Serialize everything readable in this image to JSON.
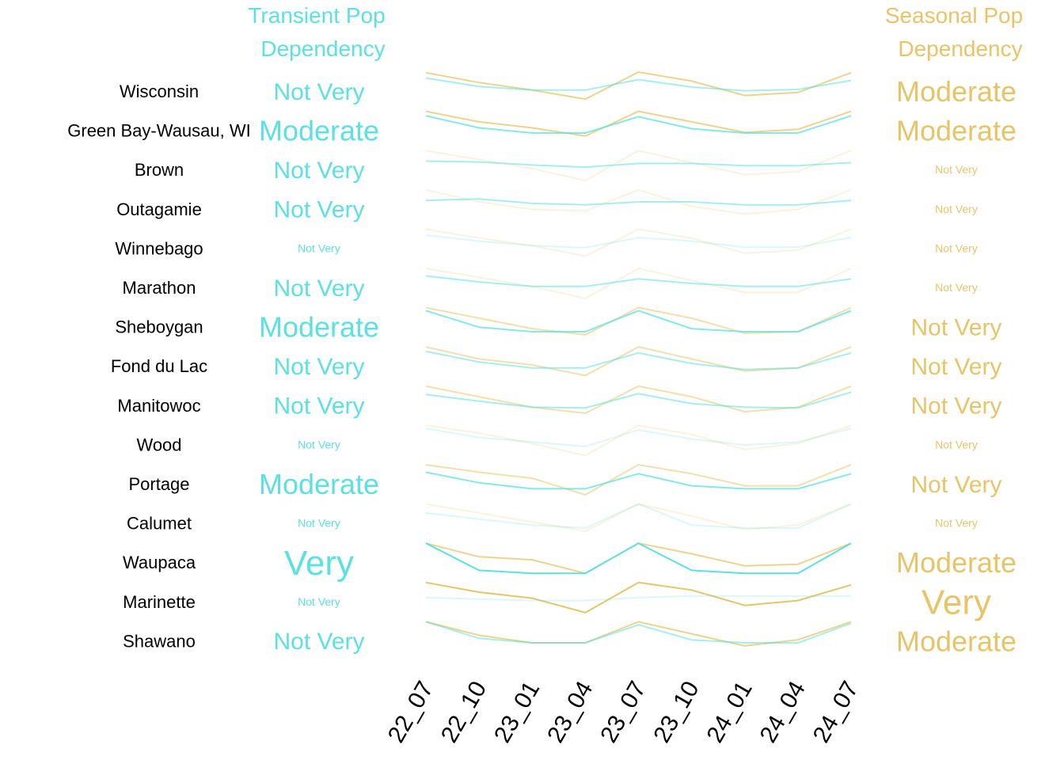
{
  "chart_data": {
    "type": "line",
    "headers": {
      "transient": [
        "Transient Pop",
        "Dependency"
      ],
      "seasonal": [
        "Seasonal Pop",
        "Dependency"
      ]
    },
    "x": [
      "22_07",
      "22_10",
      "23_01",
      "23_04",
      "23_07",
      "23_10",
      "24_01",
      "24_04",
      "24_07"
    ],
    "colors": {
      "transient": "#5ce0e0",
      "seasonal": "#e6c468",
      "label": "#000000"
    },
    "rows": [
      {
        "name": "Wisconsin",
        "transient_level": "Not Very",
        "seasonal_level": "Moderate",
        "transient": [
          0.2,
          0.48,
          0.6,
          0.6,
          0.25,
          0.5,
          0.62,
          0.58,
          0.28
        ],
        "seasonal": [
          0.02,
          0.35,
          0.6,
          0.9,
          0.0,
          0.3,
          0.78,
          0.68,
          0.02
        ]
      },
      {
        "name": "Green Bay-Wausau, WI",
        "transient_level": "Moderate",
        "seasonal_level": "Moderate",
        "transient": [
          0.15,
          0.55,
          0.72,
          0.72,
          0.18,
          0.58,
          0.72,
          0.72,
          0.15
        ],
        "seasonal": [
          0.0,
          0.35,
          0.55,
          0.82,
          0.0,
          0.35,
          0.7,
          0.6,
          0.0
        ]
      },
      {
        "name": "Brown",
        "transient_level": "Not Very",
        "seasonal_level": "Not Very",
        "transient": [
          0.35,
          0.38,
          0.48,
          0.55,
          0.43,
          0.43,
          0.5,
          0.5,
          0.4
        ],
        "seasonal": [
          0.0,
          0.3,
          0.6,
          1.0,
          0.0,
          0.4,
          0.8,
          0.7,
          0.0
        ]
      },
      {
        "name": "Outagamie",
        "transient_level": "Not Very",
        "seasonal_level": "Not Very",
        "transient": [
          0.35,
          0.3,
          0.45,
          0.5,
          0.4,
          0.4,
          0.5,
          0.5,
          0.35
        ],
        "seasonal": [
          0.0,
          0.4,
          0.65,
          0.7,
          0.0,
          0.55,
          0.8,
          0.65,
          0.0
        ]
      },
      {
        "name": "Winnebago",
        "transient_level": "Not Very",
        "seasonal_level": "Not Very",
        "transient": [
          0.2,
          0.4,
          0.55,
          0.62,
          0.28,
          0.4,
          0.6,
          0.6,
          0.28
        ],
        "seasonal": [
          0.0,
          0.3,
          0.55,
          0.9,
          0.0,
          0.3,
          0.8,
          0.7,
          0.0
        ]
      },
      {
        "name": "Marathon",
        "transient_level": "Not Very",
        "seasonal_level": "Not Very",
        "transient": [
          0.25,
          0.45,
          0.6,
          0.6,
          0.35,
          0.5,
          0.6,
          0.6,
          0.35
        ],
        "seasonal": [
          0.0,
          0.3,
          0.6,
          1.0,
          0.0,
          0.4,
          0.8,
          0.8,
          0.0
        ]
      },
      {
        "name": "Sheboygan",
        "transient_level": "Moderate",
        "seasonal_level": "Not Very",
        "transient": [
          0.1,
          0.65,
          0.8,
          0.8,
          0.1,
          0.7,
          0.8,
          0.8,
          0.1
        ],
        "seasonal": [
          0.0,
          0.35,
          0.7,
          0.9,
          0.0,
          0.35,
          0.85,
          0.8,
          0.0
        ]
      },
      {
        "name": "Fond du Lac",
        "transient_level": "Not Very",
        "seasonal_level": "Not Very",
        "transient": [
          0.15,
          0.5,
          0.7,
          0.7,
          0.2,
          0.55,
          0.75,
          0.7,
          0.2
        ],
        "seasonal": [
          0.0,
          0.4,
          0.6,
          0.95,
          0.0,
          0.4,
          0.8,
          0.7,
          0.0
        ]
      },
      {
        "name": "Manitowoc",
        "transient_level": "Not Very",
        "seasonal_level": "Not Very",
        "transient": [
          0.28,
          0.5,
          0.7,
          0.72,
          0.25,
          0.58,
          0.7,
          0.72,
          0.2
        ],
        "seasonal": [
          0.0,
          0.35,
          0.7,
          0.9,
          0.0,
          0.35,
          0.85,
          0.7,
          0.0
        ]
      },
      {
        "name": "Wood",
        "transient_level": "Not Very",
        "seasonal_level": "Not Very",
        "transient": [
          0.1,
          0.4,
          0.55,
          0.7,
          0.15,
          0.45,
          0.65,
          0.55,
          0.1
        ],
        "seasonal": [
          0.0,
          0.25,
          0.6,
          1.0,
          0.0,
          0.3,
          0.8,
          0.6,
          0.0
        ]
      },
      {
        "name": "Portage",
        "transient_level": "Moderate",
        "seasonal_level": "Not Very",
        "transient": [
          0.25,
          0.6,
          0.8,
          0.8,
          0.3,
          0.7,
          0.8,
          0.8,
          0.3
        ],
        "seasonal": [
          0.0,
          0.25,
          0.45,
          1.0,
          0.0,
          0.3,
          0.7,
          0.7,
          0.0
        ]
      },
      {
        "name": "Calumet",
        "transient_level": "Not Very",
        "seasonal_level": "Not Very",
        "transient": [
          0.3,
          0.5,
          0.7,
          0.8,
          0.0,
          0.7,
          0.8,
          0.8,
          0.0
        ],
        "seasonal": [
          0.0,
          0.3,
          0.6,
          0.9,
          0.0,
          0.4,
          0.85,
          0.7,
          0.0
        ]
      },
      {
        "name": "Waupaca",
        "transient_level": "Very",
        "seasonal_level": "Moderate",
        "transient": [
          0.0,
          0.9,
          1.0,
          1.0,
          0.0,
          0.9,
          1.0,
          1.0,
          0.0
        ],
        "seasonal": [
          0.0,
          0.45,
          0.55,
          1.0,
          0.0,
          0.35,
          0.75,
          0.7,
          0.0
        ]
      },
      {
        "name": "Marinette",
        "transient_level": "Not Very",
        "seasonal_level": "Very",
        "transient": [
          0.5,
          0.55,
          0.6,
          0.6,
          0.5,
          0.45,
          0.45,
          0.45,
          0.45
        ],
        "seasonal": [
          0.0,
          0.32,
          0.52,
          1.0,
          0.0,
          0.25,
          0.76,
          0.6,
          0.08
        ]
      },
      {
        "name": "Shawano",
        "transient_level": "Not Very",
        "seasonal_level": "Moderate",
        "transient": [
          0.0,
          0.55,
          0.7,
          0.7,
          0.1,
          0.6,
          0.7,
          0.7,
          0.05
        ],
        "seasonal": [
          0.0,
          0.45,
          0.7,
          0.7,
          0.0,
          0.4,
          0.8,
          0.6,
          0.0
        ]
      }
    ]
  }
}
